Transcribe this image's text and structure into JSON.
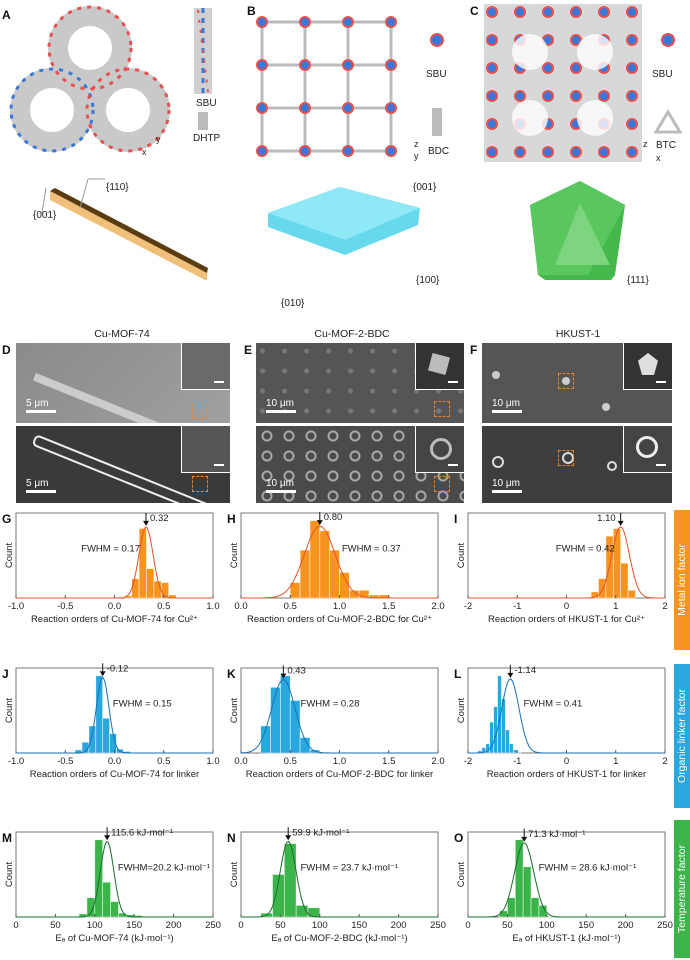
{
  "panels": {
    "A": "A",
    "B": "B",
    "C": "C",
    "D": "D",
    "E": "E",
    "F": "F"
  },
  "structures": {
    "A": {
      "sbu": "SBU",
      "linker": "DHTP",
      "axes": [
        "y",
        "x"
      ]
    },
    "B": {
      "sbu": "SBU",
      "linker": "BDC",
      "axes": [
        "z",
        "y"
      ]
    },
    "C": {
      "sbu": "SBU",
      "linker": "BTC",
      "axes": [
        "z",
        "x"
      ]
    }
  },
  "facets": {
    "rod": [
      "{110}",
      "{001}"
    ],
    "slab": [
      "{001}",
      "{100}",
      "{010}"
    ],
    "octa": [
      "{111}"
    ]
  },
  "colors": {
    "metal": "#f7941d",
    "linker": "#29a8e0",
    "temperature": "#3bb54a",
    "rod": "#f0b562",
    "slab": "#66d9ec",
    "octa": "#45b84b"
  },
  "column_titles": [
    "Cu-MOF-74",
    "Cu-MOF-2-BDC",
    "HKUST-1"
  ],
  "micrographs": {
    "D": [
      "5 μm",
      "5 μm"
    ],
    "E": [
      "10 μm",
      "10 μm"
    ],
    "F": [
      "10 μm",
      "10 μm"
    ]
  },
  "side_labels": [
    "Metal ion factor",
    "Organic linker factor",
    "Temperature factor"
  ],
  "chart_data": [
    {
      "type": "bar",
      "panel": "G",
      "ylabel": "Count",
      "xlabel": "Reaction orders of Cu-MOF-74 for Cu²⁺",
      "xlim": [
        -1,
        1
      ],
      "ticks": [
        -1,
        -0.5,
        0,
        0.5,
        1
      ],
      "tick_labels": [
        "-1.0",
        "-0.5",
        "0.0",
        "0.5",
        "1.0"
      ],
      "bin_start": 0.1,
      "bin_width": 0.075,
      "counts": [
        3,
        25,
        90,
        38,
        22,
        20,
        4
      ],
      "fit": {
        "center": 0.32,
        "fwhm": 0.17,
        "peak": 92
      },
      "peak_label": "0.32",
      "fwhm_label": "FWHM = 0.17",
      "color": "metal",
      "curve": "#e8502a"
    },
    {
      "type": "bar",
      "panel": "H",
      "ylabel": "Count",
      "xlabel": "Reaction orders of Cu-MOF-2-BDC for Cu²⁺",
      "xlim": [
        0,
        2
      ],
      "ticks": [
        0,
        0.5,
        1,
        1.5,
        2
      ],
      "tick_labels": [
        "0.0",
        "0.5",
        "1.0",
        "1.5",
        "2.0"
      ],
      "bin_start": 0.5,
      "bin_width": 0.1,
      "counts": [
        20,
        62,
        100,
        87,
        62,
        33,
        10,
        10,
        4,
        4
      ],
      "fit": {
        "center": 0.8,
        "fwhm": 0.37,
        "peak": 93
      },
      "peak_label": "0.80",
      "fwhm_label": "FWHM = 0.37",
      "color": "metal",
      "curve": "#e8502a"
    },
    {
      "type": "bar",
      "panel": "I",
      "ylabel": "Count",
      "xlabel": "Reaction orders of HKUST-1 for Cu²⁺",
      "xlim": [
        -2,
        2
      ],
      "ticks": [
        -2,
        -1,
        0,
        1,
        2
      ],
      "tick_labels": [
        "-2",
        "-1",
        "0",
        "1",
        "2"
      ],
      "bin_start": 0.5,
      "bin_width": 0.15,
      "counts": [
        8,
        25,
        80,
        90,
        45,
        10
      ],
      "fit": {
        "center": 1.1,
        "fwhm": 0.42,
        "peak": 92
      },
      "peak_label": "1.10",
      "fwhm_label": "FWHM = 0.42",
      "color": "metal",
      "curve": "#e8502a"
    },
    {
      "type": "bar",
      "panel": "J",
      "ylabel": "Count",
      "xlabel": "Reaction orders of Cu-MOF-74 for linker",
      "xlim": [
        -1,
        1
      ],
      "ticks": [
        -1,
        -0.5,
        0,
        0.5,
        1
      ],
      "tick_labels": [
        "-1.0",
        "-0.5",
        "0.0",
        "0.5",
        "1.0"
      ],
      "bin_start": -0.4,
      "bin_width": 0.07,
      "counts": [
        4,
        14,
        35,
        100,
        45,
        25,
        5,
        2
      ],
      "fit": {
        "center": -0.12,
        "fwhm": 0.15,
        "peak": 98
      },
      "peak_label": "-0.12",
      "fwhm_label": "FWHM = 0.15",
      "color": "linker",
      "curve": "#1a6fb5"
    },
    {
      "type": "bar",
      "panel": "K",
      "ylabel": "Count",
      "xlabel": "Reaction orders of Cu-MOF-2-BDC for linker",
      "xlim": [
        0,
        2
      ],
      "ticks": [
        0,
        0.5,
        1,
        1.5,
        2
      ],
      "tick_labels": [
        "0.0",
        "0.5",
        "1.0",
        "1.5",
        "2.0"
      ],
      "bin_start": 0.2,
      "bin_width": 0.1,
      "counts": [
        35,
        85,
        100,
        68,
        20,
        4
      ],
      "fit": {
        "center": 0.43,
        "fwhm": 0.28,
        "peak": 95
      },
      "peak_label": "0.43",
      "fwhm_label": "FWHM = 0.28",
      "color": "linker",
      "curve": "#1a6fb5"
    },
    {
      "type": "bar",
      "panel": "L",
      "ylabel": "Count",
      "xlabel": "Reaction orders of HKUST-1 for linker",
      "xlim": [
        -2,
        2
      ],
      "ticks": [
        -2,
        -1,
        0,
        1,
        2
      ],
      "tick_labels": [
        "-2",
        "-1",
        "0",
        "1",
        "2"
      ],
      "bin_start": -1.8,
      "bin_width": 0.08,
      "counts": [
        3,
        7,
        12,
        40,
        60,
        100,
        70,
        30,
        12,
        4,
        1
      ],
      "fit": {
        "center": -1.14,
        "fwhm": 0.41,
        "peak": 96
      },
      "peak_label": "-1.14",
      "fwhm_label": "FWHM = 0.41",
      "color": "linker",
      "curve": "#1a6fb5"
    },
    {
      "type": "bar",
      "panel": "M",
      "ylabel": "Count",
      "xlabel": "Eₐ of Cu-MOF-74 (kJ·mol⁻¹)",
      "xlim": [
        0,
        250
      ],
      "ticks": [
        0,
        50,
        100,
        150,
        200,
        250
      ],
      "tick_labels": [
        "0",
        "50",
        "100",
        "150",
        "200",
        "250"
      ],
      "bin_start": 80,
      "bin_width": 10,
      "counts": [
        4,
        25,
        100,
        45,
        20,
        5,
        3,
        2
      ],
      "fit": {
        "center": 115.6,
        "fwhm": 20.2,
        "peak": 98
      },
      "peak_label": "115.6 kJ·mol⁻¹",
      "fwhm_label": "FWHM=20.2 kJ·mol⁻¹",
      "color": "temperature",
      "curve": "#1b6b2e"
    },
    {
      "type": "bar",
      "panel": "N",
      "ylabel": "Count",
      "xlabel": "Eₐ of Cu-MOF-2-BDC (kJ·mol⁻¹)",
      "xlim": [
        0,
        250
      ],
      "ticks": [
        0,
        50,
        100,
        150,
        200,
        250
      ],
      "tick_labels": [
        "0",
        "50",
        "100",
        "150",
        "200",
        "250"
      ],
      "bin_start": 25,
      "bin_width": 15,
      "counts": [
        5,
        55,
        95,
        15,
        12
      ],
      "fit": {
        "center": 59.9,
        "fwhm": 23.7,
        "peak": 98
      },
      "peak_label": "59.9 kJ·mol⁻¹",
      "fwhm_label": "FWHM = 23.7 kJ·mol⁻¹",
      "color": "temperature",
      "curve": "#1b6b2e"
    },
    {
      "type": "bar",
      "panel": "O",
      "ylabel": "Count",
      "xlabel": "Eₐ of HKUST-1 (kJ·mol⁻¹)",
      "xlim": [
        0,
        250
      ],
      "ticks": [
        0,
        50,
        100,
        150,
        200,
        250
      ],
      "tick_labels": [
        "0",
        "50",
        "100",
        "150",
        "200",
        "250"
      ],
      "bin_start": 40,
      "bin_width": 10,
      "counts": [
        8,
        25,
        100,
        65,
        25,
        15,
        1
      ],
      "fit": {
        "center": 71.3,
        "fwhm": 28.6,
        "peak": 96
      },
      "peak_label": "71.3 kJ·mol⁻¹",
      "fwhm_label": "FWHM = 28.6 kJ·mol⁻¹",
      "color": "temperature",
      "curve": "#1b6b2e"
    }
  ]
}
